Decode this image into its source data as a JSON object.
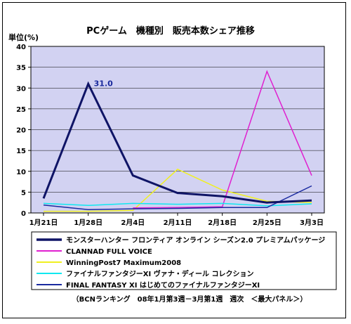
{
  "chart_data": {
    "type": "line",
    "title": "PCゲーム　機種別　販売本数シェア推移",
    "ylabel": "単位(%)",
    "ylim": [
      0,
      40
    ],
    "yticks": [
      0,
      5,
      10,
      15,
      20,
      25,
      30,
      35,
      40
    ],
    "categories": [
      "1月21日",
      "1月28日",
      "2月4日",
      "2月11日",
      "2月18日",
      "2月25日",
      "3月3日"
    ],
    "grid": true,
    "series": [
      {
        "name": "モンスターハンター フロンティア オンライン シーズン2.0 プレミアムパッケージ",
        "color": "#0f1466",
        "width": 3,
        "values": [
          3.5,
          31.0,
          9.0,
          4.8,
          4.0,
          2.5,
          3.0
        ]
      },
      {
        "name": "CLANNAD FULL VOICE",
        "color": "#e020d0",
        "width": 1.5,
        "values": [
          null,
          null,
          1.2,
          1.3,
          1.5,
          34.0,
          9.0
        ]
      },
      {
        "name": "WinningPost7 Maximum2008",
        "color": "#f0f020",
        "width": 1.5,
        "values": [
          0.4,
          0.4,
          0.6,
          10.5,
          5.5,
          2.8,
          2.5
        ]
      },
      {
        "name": "ファイナルファンタジーXI ヴァナ・ディール コレクション",
        "color": "#10e8f0",
        "width": 1.5,
        "values": [
          2.3,
          1.8,
          2.3,
          2.1,
          2.3,
          1.7,
          2.2
        ]
      },
      {
        "name": "FINAL FANTASY XI はじめてのファイナルファンタジーXI",
        "color": "#1a2aa0",
        "width": 1.5,
        "values": [
          1.9,
          0.8,
          1.0,
          1.1,
          1.3,
          1.3,
          6.5
        ]
      }
    ],
    "annotations": [
      {
        "series": 0,
        "index": 1,
        "text": "31.0"
      }
    ],
    "source": "（BCNランキング　08年1月第3週－3月第1週　週次　＜最大パネル＞）"
  }
}
